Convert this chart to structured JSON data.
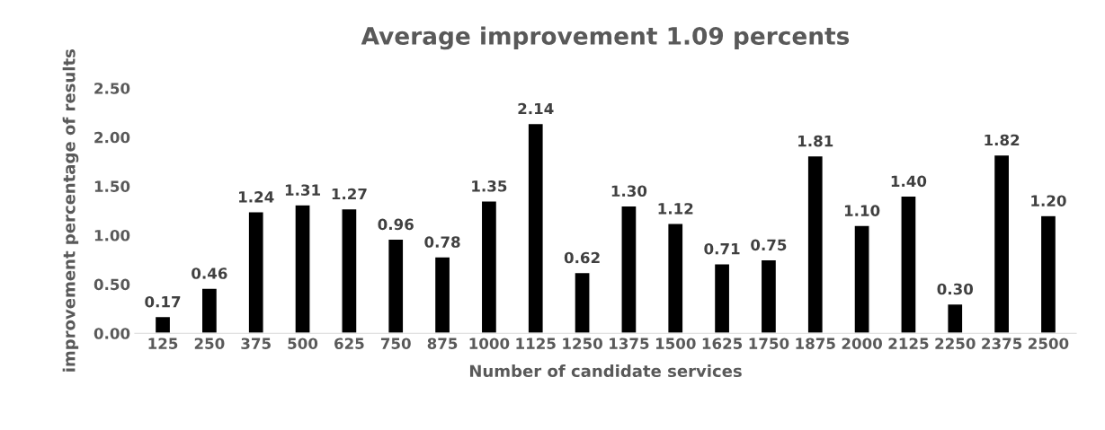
{
  "chart_data": {
    "type": "bar",
    "title": "Average improvement 1.09 percents",
    "xlabel": "Number of candidate services",
    "ylabel": "improvement percentage of results",
    "categories": [
      "125",
      "250",
      "375",
      "500",
      "625",
      "750",
      "875",
      "1000",
      "1125",
      "1250",
      "1375",
      "1500",
      "1625",
      "1750",
      "1875",
      "2000",
      "2125",
      "2250",
      "2375",
      "2500"
    ],
    "values": [
      0.17,
      0.46,
      1.24,
      1.31,
      1.27,
      0.96,
      0.78,
      1.35,
      2.14,
      0.62,
      1.3,
      1.12,
      0.71,
      0.75,
      1.81,
      1.1,
      1.4,
      0.3,
      1.82,
      1.2
    ],
    "value_labels": [
      "0.17",
      "0.46",
      "1.24",
      "1.31",
      "1.27",
      "0.96",
      "0.78",
      "1.35",
      "2.14",
      "0.62",
      "1.30",
      "1.12",
      "0.71",
      "0.75",
      "1.81",
      "1.10",
      "1.40",
      "0.30",
      "1.82",
      "1.20"
    ],
    "color": "#000000",
    "ylim": [
      0,
      2.5
    ],
    "yticks": [
      {
        "value": 0,
        "label": "0.00"
      },
      {
        "value": 0.5,
        "label": "0.50"
      },
      {
        "value": 1,
        "label": "1.00"
      },
      {
        "value": 1.5,
        "label": "1.50"
      },
      {
        "value": 2,
        "label": "2.00"
      },
      {
        "value": 2.5,
        "label": "2.50"
      }
    ],
    "grid": false,
    "legend": false
  }
}
